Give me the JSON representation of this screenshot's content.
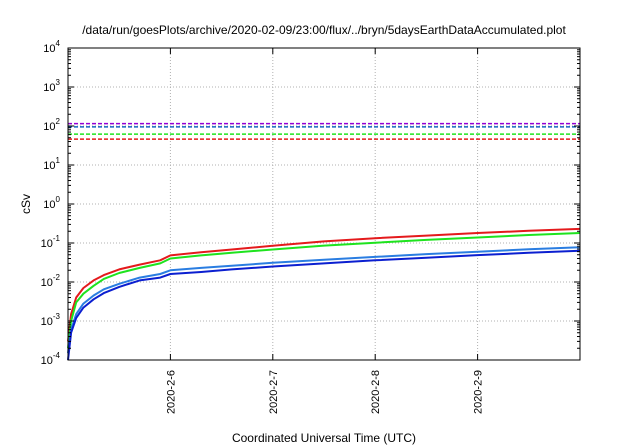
{
  "chart_data": {
    "type": "line",
    "title": "/data/run/goesPlots/archive/2020-02-09/23:00/flux/../bryn/5daysEarthDataAccumulated.plot",
    "xlabel": "Coordinated Universal Time (UTC)",
    "ylabel": "cSv",
    "yscale": "log",
    "ylim": [
      0.0001,
      10000
    ],
    "xlim": [
      0,
      5
    ],
    "y_ticks": [
      {
        "value": 0.0001,
        "base": "10",
        "exp": "-4"
      },
      {
        "value": 0.001,
        "base": "10",
        "exp": "-3"
      },
      {
        "value": 0.01,
        "base": "10",
        "exp": "-2"
      },
      {
        "value": 0.1,
        "base": "10",
        "exp": "-1"
      },
      {
        "value": 1,
        "base": "10",
        "exp": "0"
      },
      {
        "value": 10,
        "base": "10",
        "exp": "1"
      },
      {
        "value": 100,
        "base": "10",
        "exp": "2"
      },
      {
        "value": 1000,
        "base": "10",
        "exp": "3"
      },
      {
        "value": 10000,
        "base": "10",
        "exp": "4"
      }
    ],
    "x_ticks": [
      {
        "value": 1,
        "label": "2020-2-6"
      },
      {
        "value": 2,
        "label": "2020-2-7"
      },
      {
        "value": 3,
        "label": "2020-2-8"
      },
      {
        "value": 4,
        "label": "2020-2-9"
      }
    ],
    "grid": true,
    "series": [
      {
        "color": "#e41a1c",
        "x": [
          0,
          0.03,
          0.08,
          0.15,
          0.25,
          0.35,
          0.5,
          0.7,
          0.9,
          1.0,
          1.3,
          1.6,
          2.0,
          2.5,
          3.0,
          3.5,
          4.0,
          4.5,
          5.0
        ],
        "y": [
          0.0003,
          0.0015,
          0.004,
          0.007,
          0.011,
          0.015,
          0.021,
          0.028,
          0.036,
          0.048,
          0.058,
          0.068,
          0.085,
          0.11,
          0.133,
          0.155,
          0.18,
          0.205,
          0.23
        ]
      },
      {
        "color": "#1ee31e",
        "x": [
          0,
          0.03,
          0.08,
          0.15,
          0.25,
          0.35,
          0.5,
          0.7,
          0.9,
          1.0,
          1.3,
          1.6,
          2.0,
          2.5,
          3.0,
          3.5,
          4.0,
          4.5,
          5.0
        ],
        "y": [
          0.0002,
          0.001,
          0.003,
          0.005,
          0.008,
          0.012,
          0.017,
          0.023,
          0.03,
          0.04,
          0.048,
          0.056,
          0.068,
          0.086,
          0.102,
          0.12,
          0.138,
          0.16,
          0.18
        ]
      },
      {
        "color": "#2a7de1",
        "x": [
          0,
          0.03,
          0.08,
          0.15,
          0.25,
          0.35,
          0.5,
          0.7,
          0.9,
          1.0,
          1.3,
          1.6,
          2.0,
          2.5,
          3.0,
          3.5,
          4.0,
          4.5,
          5.0
        ],
        "y": [
          0.00015,
          0.0006,
          0.0015,
          0.0028,
          0.0045,
          0.0065,
          0.009,
          0.013,
          0.016,
          0.02,
          0.023,
          0.026,
          0.031,
          0.037,
          0.044,
          0.052,
          0.06,
          0.069,
          0.078
        ]
      },
      {
        "color": "#0b1fd0",
        "x": [
          0,
          0.03,
          0.08,
          0.15,
          0.25,
          0.35,
          0.5,
          0.7,
          0.9,
          1.0,
          1.3,
          1.6,
          2.0,
          2.5,
          3.0,
          3.5,
          4.0,
          4.5,
          5.0
        ],
        "y": [
          0.0001,
          0.0005,
          0.0012,
          0.0022,
          0.0036,
          0.0052,
          0.0075,
          0.011,
          0.013,
          0.016,
          0.018,
          0.021,
          0.025,
          0.03,
          0.036,
          0.042,
          0.049,
          0.056,
          0.063
        ]
      }
    ],
    "threshold_lines": [
      {
        "color": "#9400d3",
        "y": 115
      },
      {
        "color": "#1565c0",
        "y": 95
      },
      {
        "color": "#1ee31e",
        "y": 62
      },
      {
        "color": "#e41a1c",
        "y": 46
      }
    ]
  }
}
